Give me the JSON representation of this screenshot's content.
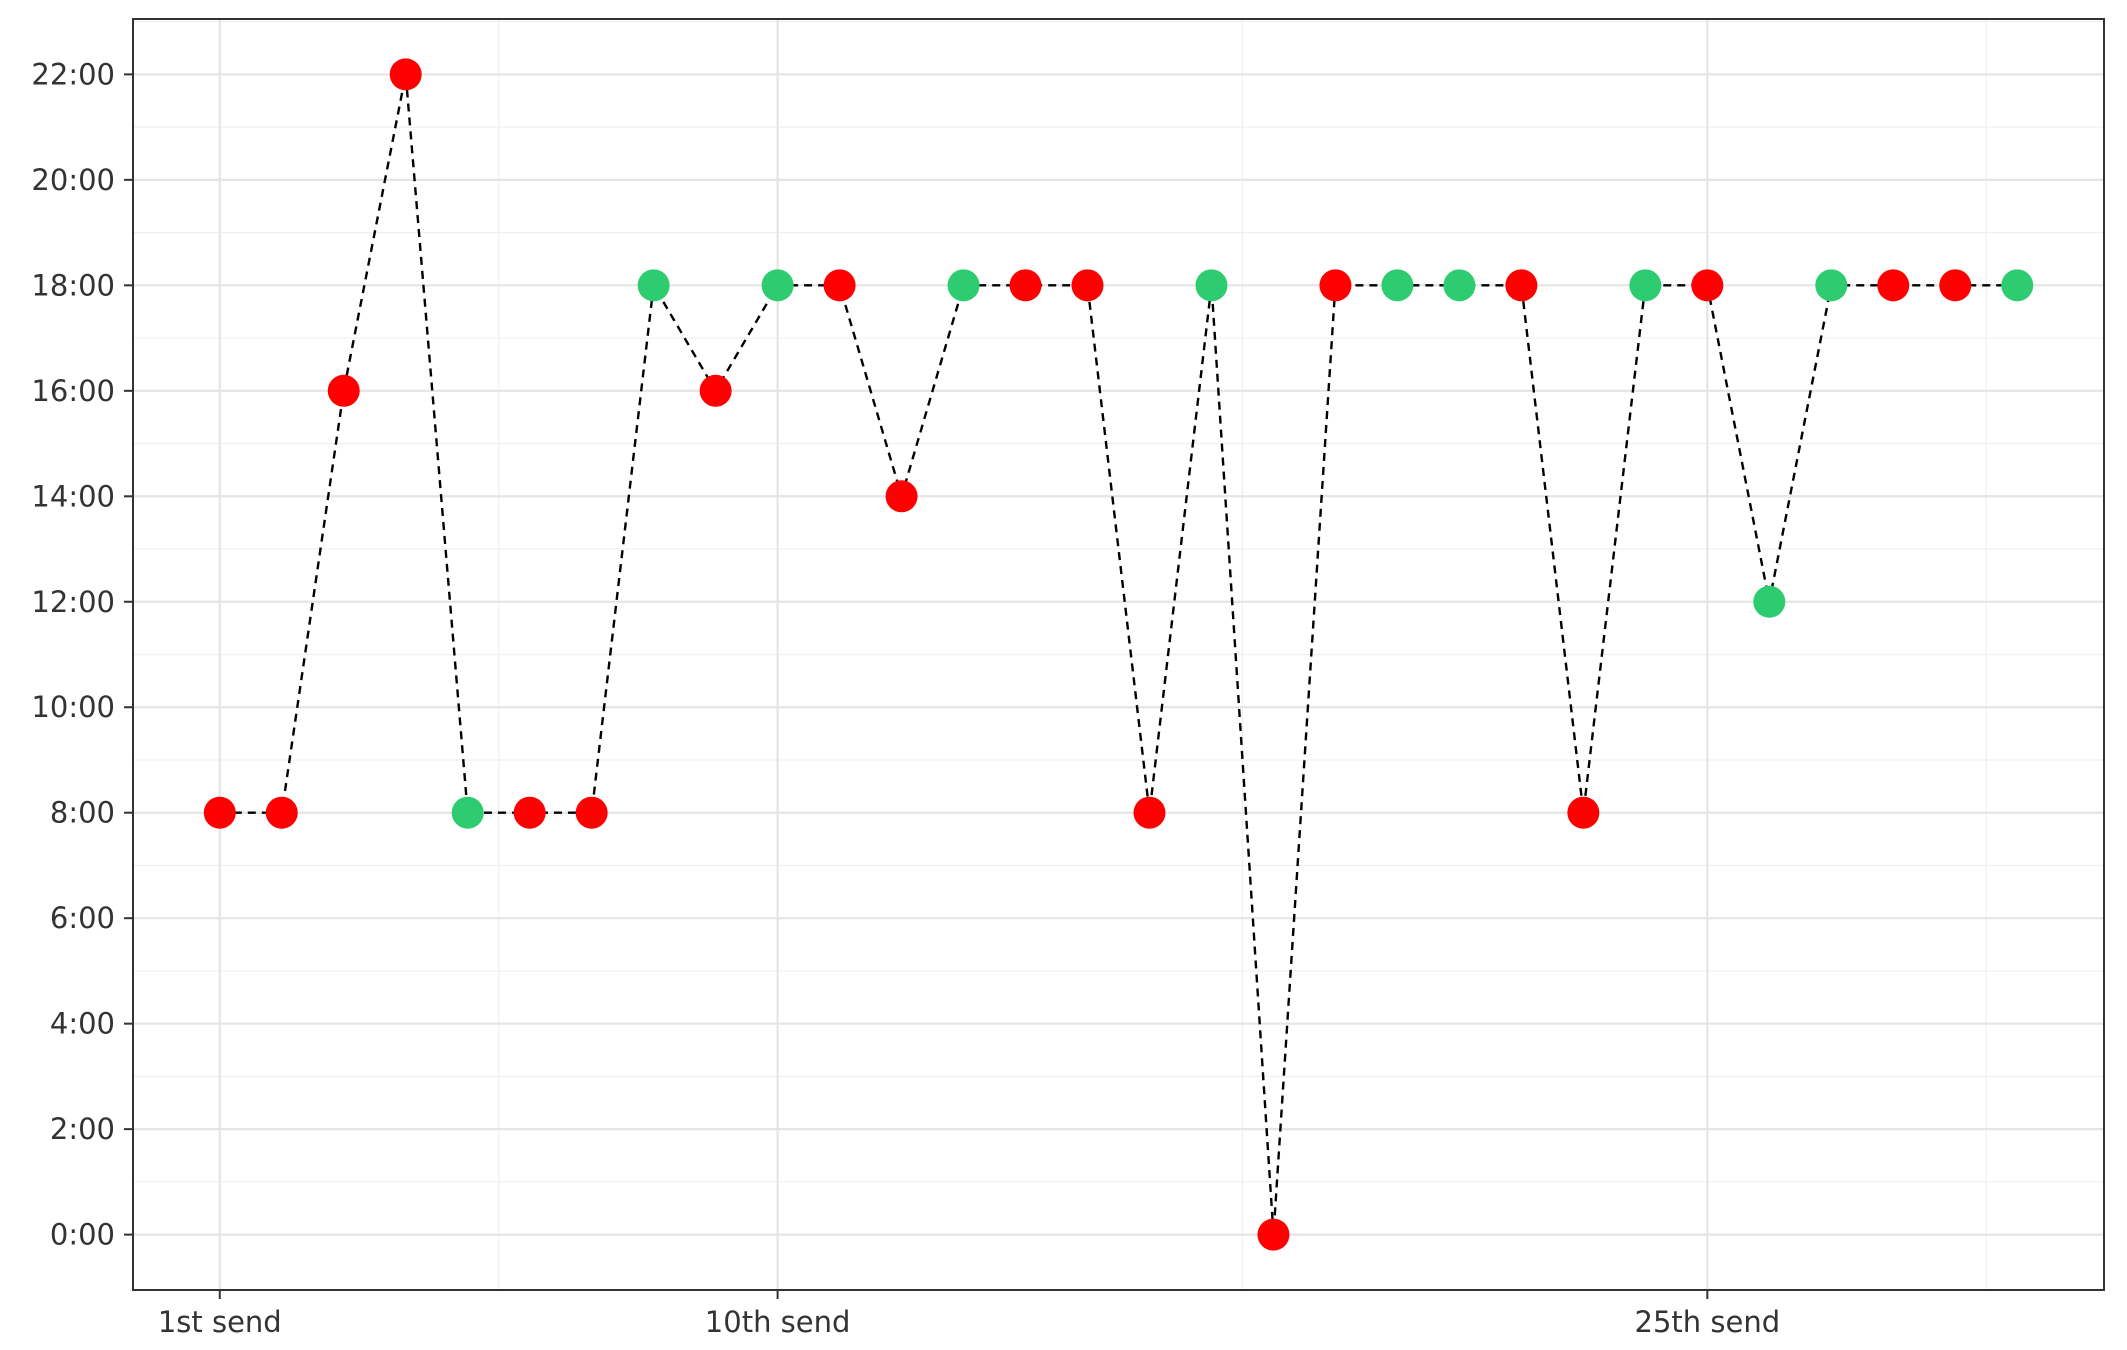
{
  "chart_data": {
    "type": "scatter",
    "title": "",
    "xlabel": "",
    "ylabel": "",
    "x_tick_labels": [
      {
        "x": 1,
        "label": "1st send"
      },
      {
        "x": 10,
        "label": "10th send"
      },
      {
        "x": 25,
        "label": "25th send"
      }
    ],
    "xlim": [
      -0.4,
      31.4
    ],
    "y_tick_labels": [
      "0:00",
      "2:00",
      "4:00",
      "6:00",
      "8:00",
      "10:00",
      "12:00",
      "14:00",
      "16:00",
      "18:00",
      "20:00",
      "22:00"
    ],
    "y_ticks_hours": [
      0,
      2,
      4,
      6,
      8,
      10,
      12,
      14,
      16,
      18,
      20,
      22
    ],
    "ylim_hours": [
      -1.05,
      23.05
    ],
    "grid": true,
    "line_style": "dashed",
    "colors": {
      "red": "#ff0000",
      "green": "#2ecc71",
      "line": "#000000"
    },
    "points": [
      {
        "x": 1,
        "hour": 8,
        "color": "red"
      },
      {
        "x": 2,
        "hour": 8,
        "color": "red"
      },
      {
        "x": 3,
        "hour": 16,
        "color": "red"
      },
      {
        "x": 4,
        "hour": 22,
        "color": "red"
      },
      {
        "x": 5,
        "hour": 8,
        "color": "green"
      },
      {
        "x": 6,
        "hour": 8,
        "color": "red"
      },
      {
        "x": 7,
        "hour": 8,
        "color": "red"
      },
      {
        "x": 8,
        "hour": 18,
        "color": "green"
      },
      {
        "x": 9,
        "hour": 16,
        "color": "red"
      },
      {
        "x": 10,
        "hour": 18,
        "color": "green"
      },
      {
        "x": 11,
        "hour": 18,
        "color": "red"
      },
      {
        "x": 12,
        "hour": 14,
        "color": "red"
      },
      {
        "x": 13,
        "hour": 18,
        "color": "green"
      },
      {
        "x": 14,
        "hour": 18,
        "color": "red"
      },
      {
        "x": 15,
        "hour": 18,
        "color": "red"
      },
      {
        "x": 16,
        "hour": 8,
        "color": "red"
      },
      {
        "x": 17,
        "hour": 18,
        "color": "green"
      },
      {
        "x": 18,
        "hour": 0,
        "color": "red"
      },
      {
        "x": 19,
        "hour": 18,
        "color": "red"
      },
      {
        "x": 20,
        "hour": 18,
        "color": "green"
      },
      {
        "x": 21,
        "hour": 18,
        "color": "green"
      },
      {
        "x": 22,
        "hour": 18,
        "color": "red"
      },
      {
        "x": 23,
        "hour": 8,
        "color": "red"
      },
      {
        "x": 24,
        "hour": 18,
        "color": "green"
      },
      {
        "x": 25,
        "hour": 18,
        "color": "red"
      },
      {
        "x": 26,
        "hour": 12,
        "color": "green"
      },
      {
        "x": 27,
        "hour": 18,
        "color": "green"
      },
      {
        "x": 28,
        "hour": 18,
        "color": "red"
      },
      {
        "x": 29,
        "hour": 18,
        "color": "red"
      },
      {
        "x": 30,
        "hour": 18,
        "color": "green"
      }
    ]
  }
}
